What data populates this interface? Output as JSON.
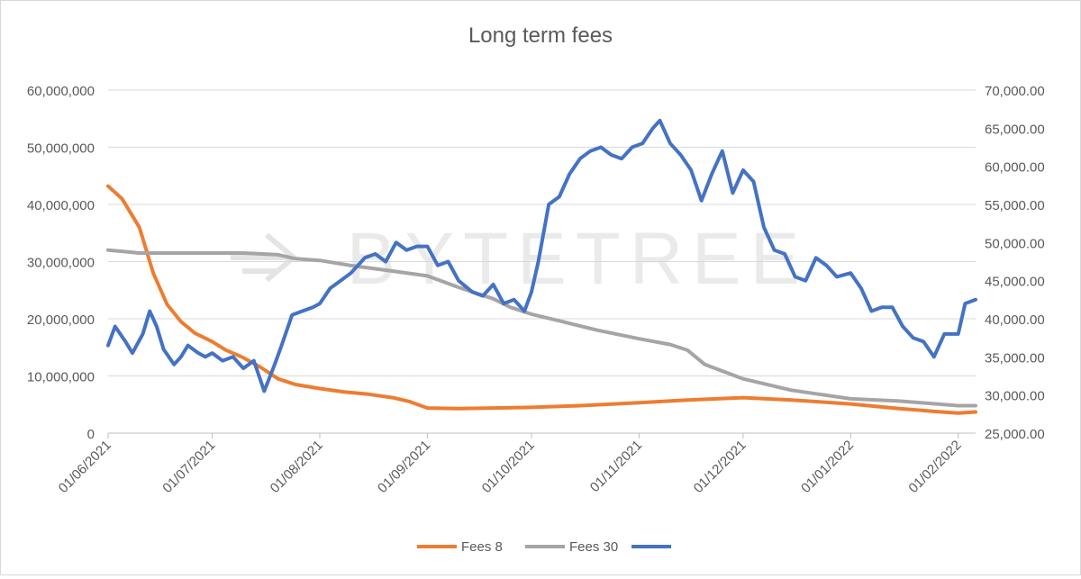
{
  "chart_data": {
    "type": "line",
    "title": "Long term fees",
    "watermark": "BYTETREE",
    "x_tick_labels": [
      "01/06/2021",
      "01/07/2021",
      "01/08/2021",
      "01/09/2021",
      "01/10/2021",
      "01/11/2021",
      "01/12/2021",
      "01/01/2022",
      "01/02/2022"
    ],
    "y_left": {
      "range": [
        0,
        60000000
      ],
      "ticks": [
        0,
        10000000,
        20000000,
        30000000,
        40000000,
        50000000,
        60000000
      ],
      "tick_labels": [
        "0",
        "10,000,000",
        "20,000,000",
        "30,000,000",
        "40,000,000",
        "50,000,000",
        "60,000,000"
      ]
    },
    "y_right": {
      "range": [
        25000,
        70000
      ],
      "ticks": [
        25000,
        30000,
        35000,
        40000,
        45000,
        50000,
        55000,
        60000,
        65000,
        70000
      ],
      "tick_labels": [
        "25,000.00",
        "30,000.00",
        "35,000.00",
        "40,000.00",
        "45,000.00",
        "50,000.00",
        "55,000.00",
        "60,000.00",
        "65,000.00",
        "70,000.00"
      ]
    },
    "grid": "horizontal",
    "legend_position": "bottom",
    "series": [
      {
        "name": "Fees 8",
        "axis": "left",
        "color": "#ed7d31",
        "x": [
          "2021-06-01",
          "2021-06-05",
          "2021-06-10",
          "2021-06-14",
          "2021-06-18",
          "2021-06-22",
          "2021-06-26",
          "2021-07-01",
          "2021-07-05",
          "2021-07-10",
          "2021-07-15",
          "2021-07-20",
          "2021-07-25",
          "2021-08-01",
          "2021-08-08",
          "2021-08-15",
          "2021-08-22",
          "2021-08-27",
          "2021-09-01",
          "2021-09-10",
          "2021-09-20",
          "2021-10-01",
          "2021-10-15",
          "2021-11-01",
          "2021-11-15",
          "2021-12-01",
          "2021-12-15",
          "2022-01-01",
          "2022-01-15",
          "2022-01-25",
          "2022-02-01",
          "2022-02-06"
        ],
        "values": [
          43200000,
          41000000,
          36000000,
          28000000,
          22500000,
          19500000,
          17500000,
          16000000,
          14500000,
          13200000,
          11500000,
          9500000,
          8500000,
          7800000,
          7200000,
          6800000,
          6200000,
          5500000,
          4400000,
          4300000,
          4400000,
          4500000,
          4800000,
          5300000,
          5800000,
          6200000,
          5800000,
          5100000,
          4300000,
          3800000,
          3500000,
          3700000
        ]
      },
      {
        "name": "Fees 30",
        "axis": "left",
        "color": "#a5a5a5",
        "x": [
          "2021-06-01",
          "2021-06-05",
          "2021-06-10",
          "2021-06-20",
          "2021-07-01",
          "2021-07-10",
          "2021-07-20",
          "2021-07-25",
          "2021-08-01",
          "2021-08-10",
          "2021-08-20",
          "2021-09-01",
          "2021-09-10",
          "2021-09-20",
          "2021-09-25",
          "2021-10-01",
          "2021-10-10",
          "2021-10-20",
          "2021-11-01",
          "2021-11-10",
          "2021-11-15",
          "2021-11-20",
          "2021-12-01",
          "2021-12-15",
          "2022-01-01",
          "2022-01-15",
          "2022-02-01",
          "2022-02-06"
        ],
        "values": [
          32000000,
          31800000,
          31500000,
          31500000,
          31500000,
          31500000,
          31200000,
          30500000,
          30200000,
          29300000,
          28500000,
          27500000,
          25500000,
          23500000,
          22000000,
          20800000,
          19500000,
          18000000,
          16500000,
          15500000,
          14500000,
          12000000,
          9500000,
          7500000,
          6000000,
          5600000,
          4800000,
          4800000
        ]
      },
      {
        "name": "",
        "axis": "right",
        "color": "#4472c4",
        "x": [
          "2021-06-01",
          "2021-06-03",
          "2021-06-06",
          "2021-06-08",
          "2021-06-11",
          "2021-06-13",
          "2021-06-15",
          "2021-06-17",
          "2021-06-20",
          "2021-06-22",
          "2021-06-24",
          "2021-06-27",
          "2021-06-29",
          "2021-07-01",
          "2021-07-04",
          "2021-07-07",
          "2021-07-10",
          "2021-07-13",
          "2021-07-16",
          "2021-07-19",
          "2021-07-21",
          "2021-07-24",
          "2021-07-27",
          "2021-07-30",
          "2021-08-01",
          "2021-08-04",
          "2021-08-07",
          "2021-08-10",
          "2021-08-14",
          "2021-08-17",
          "2021-08-20",
          "2021-08-23",
          "2021-08-26",
          "2021-08-29",
          "2021-09-01",
          "2021-09-04",
          "2021-09-07",
          "2021-09-10",
          "2021-09-14",
          "2021-09-17",
          "2021-09-20",
          "2021-09-23",
          "2021-09-26",
          "2021-09-29",
          "2021-10-01",
          "2021-10-03",
          "2021-10-06",
          "2021-10-09",
          "2021-10-12",
          "2021-10-15",
          "2021-10-18",
          "2021-10-21",
          "2021-10-24",
          "2021-10-27",
          "2021-10-30",
          "2021-11-02",
          "2021-11-05",
          "2021-11-07",
          "2021-11-10",
          "2021-11-13",
          "2021-11-16",
          "2021-11-19",
          "2021-11-22",
          "2021-11-25",
          "2021-11-28",
          "2021-12-01",
          "2021-12-04",
          "2021-12-07",
          "2021-12-10",
          "2021-12-13",
          "2021-12-16",
          "2021-12-19",
          "2021-12-22",
          "2021-12-25",
          "2021-12-28",
          "2022-01-01",
          "2022-01-04",
          "2022-01-07",
          "2022-01-10",
          "2022-01-13",
          "2022-01-16",
          "2022-01-19",
          "2022-01-22",
          "2022-01-25",
          "2022-01-28",
          "2022-02-01",
          "2022-02-03",
          "2022-02-06"
        ],
        "values": [
          36500,
          39000,
          37000,
          35500,
          38000,
          41000,
          39000,
          36000,
          34000,
          35000,
          36500,
          35500,
          35000,
          35500,
          34500,
          35000,
          33500,
          34500,
          30500,
          34000,
          36500,
          40500,
          41000,
          41500,
          42000,
          44000,
          45000,
          46000,
          48000,
          48500,
          47500,
          50000,
          49000,
          49500,
          49500,
          47000,
          47500,
          45000,
          43500,
          43000,
          44500,
          42000,
          42500,
          41000,
          43500,
          47500,
          55000,
          56000,
          59000,
          61000,
          62000,
          62500,
          61500,
          61000,
          62500,
          63000,
          65000,
          66000,
          63000,
          61500,
          59500,
          55500,
          59000,
          62000,
          56500,
          59500,
          58000,
          52000,
          49000,
          48500,
          45500,
          45000,
          48000,
          47000,
          45500,
          46000,
          44000,
          41000,
          41500,
          41500,
          39000,
          37500,
          37000,
          35000,
          38000,
          38000,
          42000,
          42500
        ]
      }
    ]
  }
}
